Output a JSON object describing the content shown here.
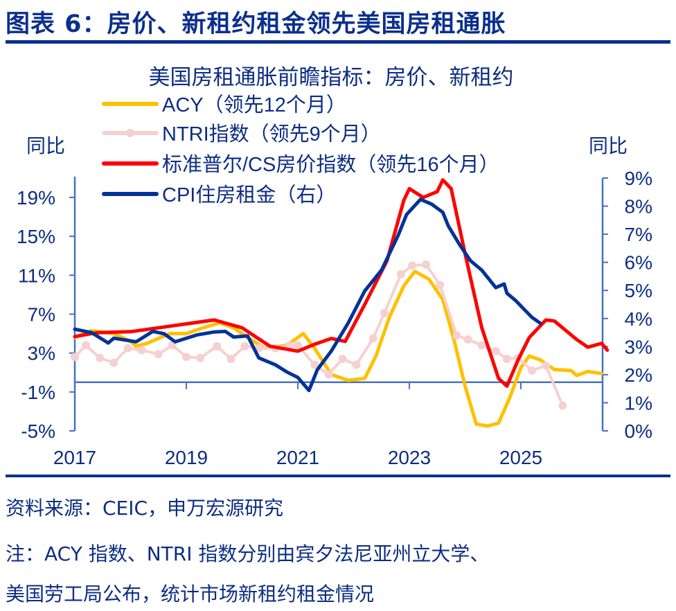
{
  "header": {
    "title": "图表 6：房价、新租约租金领先美国房租通胀"
  },
  "footer": {
    "source": "资料来源：CEIC，申万宏源研究",
    "note_line1": "注：ACY 指数、NTRI 指数分别由宾夕法尼亚州立大学、",
    "note_line2": "美国劳工局公布，统计市场新租约租金情况"
  },
  "chart_data": {
    "type": "line",
    "title": "美国房租通胀前瞻指标：房价、新租约",
    "ylabel_left": "同比",
    "ylabel_right": "同比",
    "x_ticks": [
      "2017",
      "2019",
      "2021",
      "2023",
      "2025"
    ],
    "x_tick_values": [
      2017,
      2019,
      2021,
      2023,
      2025
    ],
    "xlim": [
      2017,
      2026.5
    ],
    "ylim_left": [
      -5,
      19
    ],
    "y_ticks_left": [
      "-5%",
      "-1%",
      "3%",
      "7%",
      "11%",
      "15%",
      "19%"
    ],
    "y_tick_values_left": [
      -5,
      -1,
      3,
      7,
      11,
      15,
      19
    ],
    "ylim_right": [
      0,
      9
    ],
    "y_ticks_right": [
      "0%",
      "1%",
      "2%",
      "3%",
      "4%",
      "5%",
      "6%",
      "7%",
      "8%",
      "9%"
    ],
    "y_tick_values_right": [
      0,
      1,
      2,
      3,
      4,
      5,
      6,
      7,
      8,
      9
    ],
    "grid": false,
    "legend_position": "top-left",
    "series": [
      {
        "name": "ACY（领先12个月）",
        "axis": "left",
        "color": "#ffc000",
        "markers": false,
        "x": [
          2017,
          2017.3,
          2017.7,
          2018.0,
          2018.1,
          2018.3,
          2018.7,
          2019.0,
          2019.3,
          2019.6,
          2019.85,
          2020.1,
          2020.4,
          2020.8,
          2021.0,
          2021.1,
          2021.3,
          2021.6,
          2021.9,
          2022.2,
          2022.4,
          2022.65,
          2022.9,
          2023.1,
          2023.35,
          2023.6,
          2023.8,
          2024.0,
          2024.2,
          2024.4,
          2024.6,
          2024.8,
          2025.0,
          2025.15,
          2025.35,
          2025.6,
          2025.9,
          2026.0,
          2026.2,
          2026.45
        ],
        "y": [
          4.6,
          5.3,
          5.0,
          4.2,
          3.7,
          4.0,
          5.0,
          5.0,
          5.6,
          6.1,
          5.6,
          4.6,
          3.5,
          3.8,
          4.6,
          5.0,
          3.5,
          0.8,
          0.2,
          0.4,
          2.7,
          6.8,
          9.9,
          11.4,
          10.6,
          8.5,
          4.4,
          -0.4,
          -4.3,
          -4.5,
          -4.2,
          -1.6,
          1.5,
          2.7,
          2.3,
          1.3,
          1.2,
          0.7,
          1.1,
          0.9
        ]
      },
      {
        "name": "NTRI指数（领先9个月）",
        "axis": "left",
        "color": "#f6d0d0",
        "markers": true,
        "x": [
          2017,
          2017.2,
          2017.45,
          2017.7,
          2017.95,
          2018.2,
          2018.5,
          2018.75,
          2019.0,
          2019.25,
          2019.55,
          2019.8,
          2020.05,
          2020.3,
          2020.6,
          2020.85,
          2021.0,
          2021.3,
          2021.55,
          2021.8,
          2022.05,
          2022.35,
          2022.55,
          2022.85,
          2023.05,
          2023.3,
          2023.55,
          2023.85,
          2024.05,
          2024.3,
          2024.55,
          2024.75,
          2024.95,
          2025.2,
          2025.45,
          2025.75
        ],
        "y": [
          2.6,
          3.8,
          2.5,
          2.0,
          3.5,
          3.3,
          2.9,
          3.8,
          2.6,
          2.5,
          3.7,
          2.4,
          3.7,
          3.5,
          3.5,
          3.8,
          3.8,
          1.8,
          0.8,
          2.4,
          1.8,
          4.5,
          7.1,
          11.1,
          12.0,
          12.1,
          10.0,
          4.8,
          4.4,
          3.8,
          3.2,
          2.4,
          2.5,
          1.2,
          1.7,
          -2.4
        ]
      },
      {
        "name": "标准普尔/CS房价指数（领先16个月）",
        "axis": "left",
        "color": "#ff0000",
        "markers": false,
        "x": [
          2017.0,
          2017.4,
          2018.0,
          2018.5,
          2019.0,
          2019.5,
          2020.0,
          2020.5,
          2021.0,
          2021.3,
          2021.6,
          2021.85,
          2022.2,
          2022.6,
          2022.9,
          2023.0,
          2023.25,
          2023.5,
          2023.6,
          2023.75,
          2024.0,
          2024.3,
          2024.6,
          2024.75,
          2024.95,
          2025.15,
          2025.45,
          2025.6,
          2026.0,
          2026.2,
          2026.45,
          2026.55
        ],
        "y": [
          4.7,
          5.1,
          5.2,
          5.6,
          6.0,
          6.4,
          5.6,
          3.7,
          3.2,
          3.9,
          4.5,
          4.2,
          8.0,
          12.5,
          18.7,
          19.9,
          19.0,
          19.6,
          20.8,
          19.9,
          13.2,
          5.6,
          0.4,
          -0.4,
          2.3,
          4.6,
          6.4,
          6.3,
          4.4,
          3.6,
          4.0,
          3.3
        ]
      },
      {
        "name": "CPI住房租金（右）",
        "axis": "right",
        "color": "#003399",
        "markers": false,
        "x": [
          2017,
          2017.3,
          2017.6,
          2017.7,
          2018.1,
          2018.4,
          2018.6,
          2018.8,
          2019.2,
          2019.5,
          2019.7,
          2019.85,
          2020.1,
          2020.3,
          2020.6,
          2020.8,
          2021.0,
          2021.2,
          2021.35,
          2021.6,
          2021.9,
          2022.2,
          2022.5,
          2022.8,
          2022.95,
          2023.2,
          2023.4,
          2023.6,
          2023.7,
          2023.9,
          2024.1,
          2024.3,
          2024.55,
          2024.7,
          2024.75,
          2024.9,
          2025.2,
          2025.35
        ],
        "y": [
          3.62,
          3.5,
          3.13,
          3.3,
          3.17,
          3.54,
          3.46,
          3.17,
          3.42,
          3.52,
          3.54,
          3.34,
          3.38,
          2.6,
          2.35,
          2.1,
          1.9,
          1.44,
          2.18,
          2.84,
          3.83,
          4.98,
          5.72,
          6.96,
          7.7,
          8.24,
          8.07,
          7.78,
          7.29,
          6.63,
          6.05,
          5.72,
          5.1,
          5.23,
          4.9,
          4.65,
          4.04,
          3.83
        ]
      }
    ]
  }
}
